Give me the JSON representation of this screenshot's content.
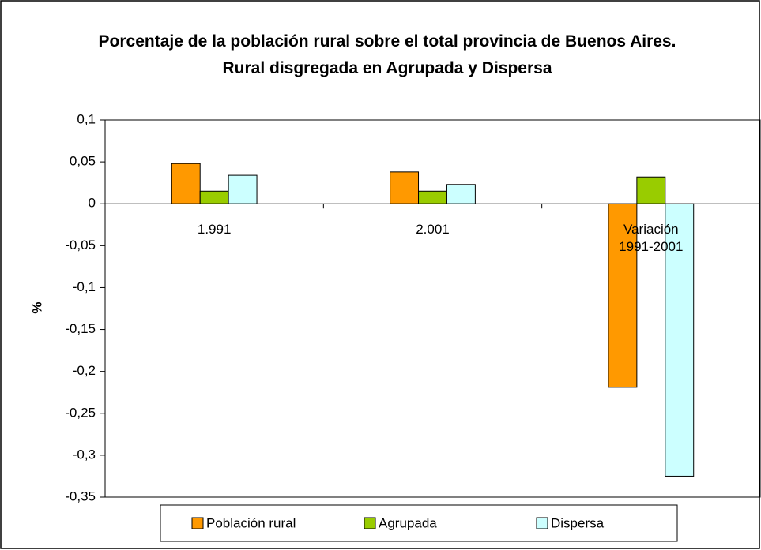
{
  "chart_data": {
    "type": "bar",
    "title": "Porcentaje de la población rural sobre el total provincia de Buenos Aires. Rural disgregada en Agrupada y Dispersa",
    "y_label": "%",
    "categories": [
      "1.991",
      "2.001",
      "Variación 1991-2001"
    ],
    "series": [
      {
        "name": "Población rural",
        "color": "#FF9900",
        "values": [
          0.048,
          0.038,
          -0.219
        ]
      },
      {
        "name": "Agrupada",
        "color": "#99CC00",
        "values": [
          0.015,
          0.015,
          0.032
        ]
      },
      {
        "name": "Dispersa",
        "color": "#CCFFFF",
        "values": [
          0.034,
          0.023,
          -0.325
        ]
      }
    ],
    "ylim": [
      -0.35,
      0.1
    ],
    "yticks": [
      {
        "value": -0.35,
        "label": "-0,35"
      },
      {
        "value": -0.3,
        "label": "-0,3"
      },
      {
        "value": -0.25,
        "label": "-0,25"
      },
      {
        "value": -0.2,
        "label": "-0,2"
      },
      {
        "value": -0.15,
        "label": "-0,15"
      },
      {
        "value": -0.1,
        "label": "-0,1"
      },
      {
        "value": -0.05,
        "label": "-0,05"
      },
      0,
      {
        "value": 0.05,
        "label": "0,05"
      },
      {
        "value": 0.1,
        "label": "0,1"
      }
    ],
    "grid": false,
    "legend": "bottom"
  }
}
